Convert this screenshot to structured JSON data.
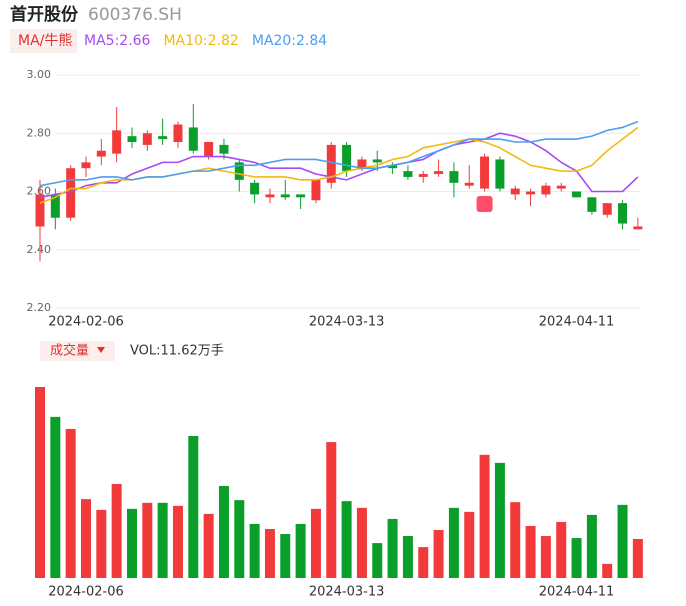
{
  "chart_data": {
    "type": "candlestick",
    "title": "首开股份",
    "subtitle": "600376.SH",
    "ma_button": "MA/牛熊",
    "volume_button": "成交量",
    "volume_label": "VOL:11.62万手",
    "categories": [
      null,
      null,
      null,
      "2024-02-06",
      null,
      null,
      null,
      null,
      null,
      null,
      null,
      null,
      null,
      null,
      null,
      null,
      null,
      null,
      null,
      null,
      "2024-03-13",
      null,
      null,
      null,
      null,
      null,
      null,
      null,
      null,
      null,
      null,
      null,
      null,
      null,
      null,
      "2024-04-11",
      null,
      null,
      null,
      null
    ],
    "open": [
      2.48,
      2.59,
      2.51,
      2.68,
      2.72,
      2.73,
      2.79,
      2.76,
      2.79,
      2.77,
      2.82,
      2.72,
      2.76,
      2.7,
      2.63,
      2.58,
      2.59,
      2.59,
      2.57,
      2.63,
      2.76,
      2.68,
      2.71,
      2.69,
      2.67,
      2.65,
      2.66,
      2.67,
      2.62,
      2.61,
      2.71,
      2.59,
      2.59,
      2.59,
      2.61,
      2.6,
      2.58,
      2.52,
      2.56,
      2.47
    ],
    "close": [
      2.59,
      2.51,
      2.68,
      2.7,
      2.74,
      2.81,
      2.77,
      2.8,
      2.78,
      2.83,
      2.74,
      2.77,
      2.73,
      2.64,
      2.59,
      2.59,
      2.58,
      2.58,
      2.64,
      2.76,
      2.67,
      2.71,
      2.7,
      2.68,
      2.65,
      2.66,
      2.67,
      2.63,
      2.63,
      2.72,
      2.61,
      2.61,
      2.6,
      2.62,
      2.62,
      2.58,
      2.53,
      2.56,
      2.49,
      2.48
    ],
    "high": [
      2.64,
      2.61,
      2.69,
      2.72,
      2.78,
      2.89,
      2.82,
      2.81,
      2.85,
      2.84,
      2.9,
      2.77,
      2.78,
      2.71,
      2.64,
      2.61,
      2.64,
      2.59,
      2.64,
      2.77,
      2.77,
      2.72,
      2.74,
      2.7,
      2.69,
      2.67,
      2.71,
      2.7,
      2.69,
      2.73,
      2.72,
      2.62,
      2.61,
      2.63,
      2.63,
      2.6,
      2.58,
      2.56,
      2.57,
      2.51
    ],
    "low": [
      2.36,
      2.47,
      2.5,
      2.65,
      2.69,
      2.7,
      2.75,
      2.74,
      2.76,
      2.75,
      2.73,
      2.71,
      2.71,
      2.6,
      2.56,
      2.56,
      2.57,
      2.54,
      2.56,
      2.61,
      2.65,
      2.67,
      2.67,
      2.66,
      2.64,
      2.63,
      2.65,
      2.58,
      2.61,
      2.6,
      2.6,
      2.57,
      2.55,
      2.58,
      2.6,
      2.58,
      2.52,
      2.51,
      2.47,
      2.47
    ],
    "volume": [
      56.9,
      48.0,
      44.4,
      23.5,
      20.3,
      28.0,
      20.6,
      22.4,
      22.4,
      21.5,
      42.3,
      19.1,
      27.4,
      23.2,
      16.1,
      14.6,
      13.1,
      16.1,
      20.6,
      40.5,
      22.9,
      20.9,
      10.4,
      17.6,
      12.5,
      9.2,
      14.3,
      20.9,
      19.7,
      36.7,
      34.3,
      22.6,
      15.5,
      12.5,
      16.7,
      11.9,
      18.8,
      4.2,
      21.8,
      11.62
    ],
    "up_color": "#f23a3a",
    "down_color": "#0a9e2a",
    "series": [
      {
        "name": "MA5:2.66",
        "color": "#a64bf4",
        "values": [
          2.58,
          2.59,
          2.6,
          2.62,
          2.63,
          2.63,
          2.66,
          2.68,
          2.7,
          2.7,
          2.72,
          2.72,
          2.72,
          2.71,
          2.7,
          2.68,
          2.68,
          2.68,
          2.66,
          2.65,
          2.64,
          2.66,
          2.68,
          2.69,
          2.7,
          2.71,
          2.74,
          2.76,
          2.77,
          2.78,
          2.8,
          2.79,
          2.77,
          2.74,
          2.7,
          2.67,
          2.6,
          2.6,
          2.6,
          2.65
        ]
      },
      {
        "name": "MA10:2.82",
        "color": "#f5b80a",
        "values": [
          2.56,
          2.58,
          2.61,
          2.61,
          2.63,
          2.64,
          2.64,
          2.65,
          2.65,
          2.66,
          2.67,
          2.68,
          2.67,
          2.66,
          2.65,
          2.65,
          2.65,
          2.64,
          2.64,
          2.65,
          2.67,
          2.68,
          2.69,
          2.71,
          2.72,
          2.75,
          2.76,
          2.77,
          2.78,
          2.77,
          2.75,
          2.72,
          2.69,
          2.68,
          2.67,
          2.67,
          2.69,
          2.74,
          2.78,
          2.82
        ]
      },
      {
        "name": "MA20:2.84",
        "color": "#4a9ff0",
        "values": [
          2.62,
          2.63,
          2.64,
          2.64,
          2.65,
          2.65,
          2.64,
          2.65,
          2.65,
          2.66,
          2.67,
          2.67,
          2.68,
          2.69,
          2.69,
          2.7,
          2.71,
          2.71,
          2.71,
          2.7,
          2.69,
          2.68,
          2.68,
          2.69,
          2.7,
          2.72,
          2.74,
          2.76,
          2.78,
          2.78,
          2.78,
          2.77,
          2.77,
          2.78,
          2.78,
          2.78,
          2.79,
          2.81,
          2.82,
          2.84
        ]
      }
    ],
    "ylim": [
      2.2,
      3.0
    ],
    "yticks": [
      {
        "value": 2.2,
        "label": "2.20"
      },
      {
        "value": 2.4,
        "label": "2.40"
      },
      {
        "value": 2.6,
        "label": "2.60"
      },
      {
        "value": 2.8,
        "label": "2.80"
      },
      {
        "value": 3,
        "label": "3.00"
      }
    ],
    "grid": true
  }
}
